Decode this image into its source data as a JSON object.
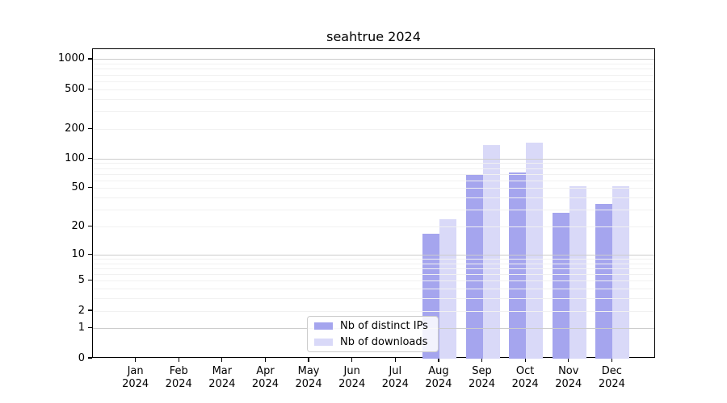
{
  "colors": {
    "background": "#ffffff",
    "bar_distinct_ips": "#a5a5ee",
    "bar_downloads": "#d9d9f8",
    "grid_minor": "#f1f1f1",
    "grid_major": "#cccccc",
    "spine": "#000000",
    "legend_border": "#cccccc"
  },
  "legend": {
    "entries": [
      "Nb of distinct IPs",
      "Nb of downloads"
    ]
  },
  "chart_data": {
    "type": "bar",
    "title": "seahtrue 2024",
    "xlabel": "",
    "ylabel": "",
    "categories": [
      "Jan",
      "Feb",
      "Mar",
      "Apr",
      "May",
      "Jun",
      "Jul",
      "Aug",
      "Sep",
      "Oct",
      "Nov",
      "Dec"
    ],
    "year": "2024",
    "series": [
      {
        "name": "Nb of distinct IPs",
        "color": "#a5a5ee",
        "values": [
          0,
          0,
          0,
          0,
          0,
          0,
          0,
          17,
          70,
          73,
          28,
          35
        ]
      },
      {
        "name": "Nb of downloads",
        "color": "#d9d9f8",
        "values": [
          0,
          0,
          0,
          0,
          0,
          0,
          0,
          24,
          138,
          146,
          53,
          53
        ]
      }
    ],
    "y_axis": {
      "scale": "log1p",
      "tick_values": [
        0,
        1,
        2,
        5,
        10,
        20,
        50,
        100,
        200,
        500,
        1000
      ],
      "major_grid_values": [
        1,
        10,
        100,
        1000
      ],
      "ylim": [
        0,
        1274
      ]
    },
    "grid": "on",
    "legend_position": "lower center-left inside plot"
  }
}
